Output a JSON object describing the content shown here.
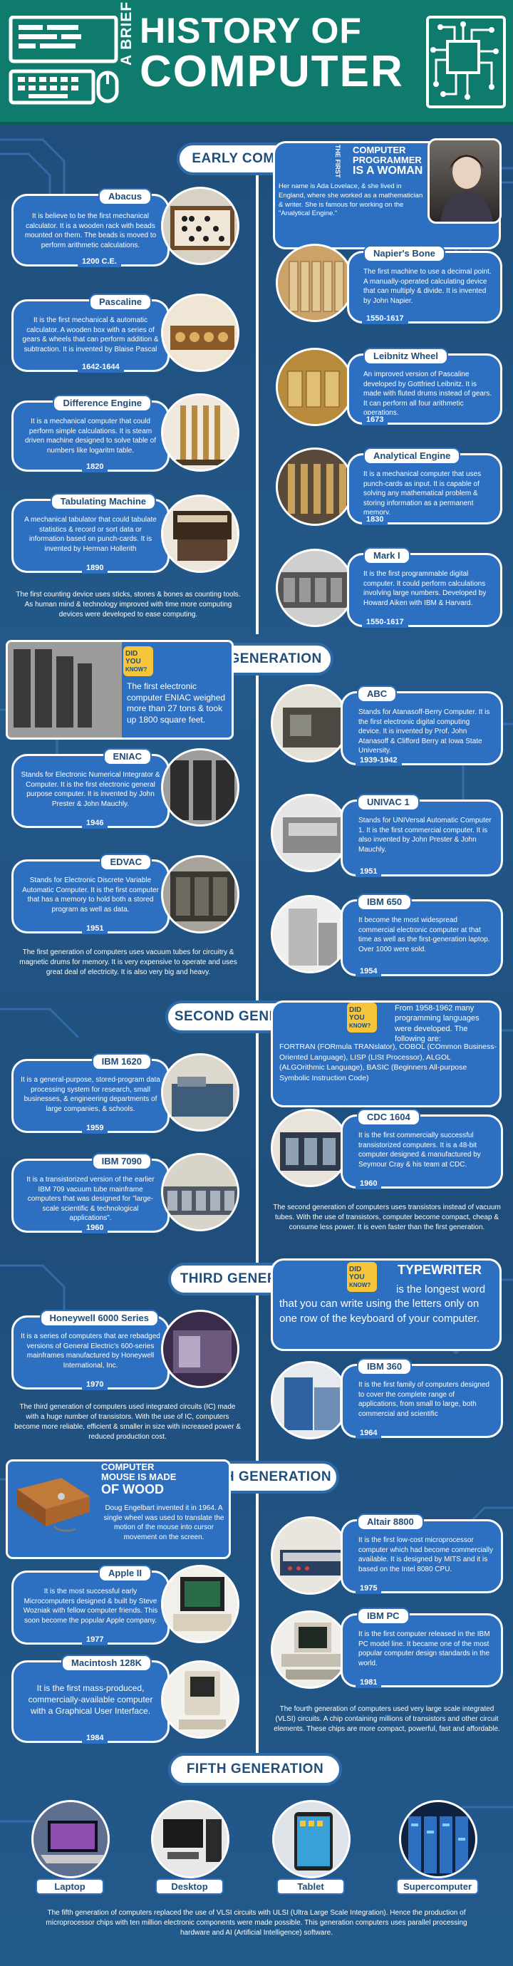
{
  "header": {
    "line1": "A BRIEF",
    "line2": "HISTORY OF",
    "line3": "COMPUTER"
  },
  "sections": {
    "early": "EARLY COMPUTER",
    "first": "FIRST GENERATION",
    "second": "SECOND GENERATION",
    "third": "THIRD GENERATION",
    "fourth": "FOURTH GENERATION",
    "fifth": "FIFTH GENERATION"
  },
  "programmer": {
    "tag": "THE FIRST",
    "title1": "COMPUTER",
    "title2": "PROGRAMMER",
    "title3": "IS A WOMAN",
    "text": "Her name is Ada Lovelace, & she lived in England, where she worked as a mathematician & writer. She is famous for working on the \"Analytical Engine.\""
  },
  "early": {
    "abacus": {
      "title": "Abacus",
      "text": "It is believe to be the first mechanical calculator. It is a wooden rack with beads mounted on them. The beads is moved to perform arithmetic calculations.",
      "year": "1200 C.E."
    },
    "napier": {
      "title": "Napier's Bone",
      "text": "The first machine to use a decimal point. A manually-operated calculating device that can multiply & divide. It is invented by John Napier.",
      "year": "1550-1617"
    },
    "pascaline": {
      "title": "Pascaline",
      "text": "It is the first mechanical & automatic calculator. A wooden box with a series of gears & wheels that can perform addition & subtraction. It is invented by Blaise Pascal",
      "year": "1642-1644"
    },
    "leibnitz": {
      "title": "Leibnitz Wheel",
      "text": "An improved version of Pascaline developed by Gottfried Leibnitz. It is made with fluted drums instead of gears. It can perform all four arithmetic operations.",
      "year": "1673"
    },
    "difference": {
      "title": "Difference Engine",
      "text": "It is a mechanical computer that could perform simple calculations. It is steam driven machine designed to solve table of numbers like logaritm table.",
      "year": "1820"
    },
    "analytical": {
      "title": "Analytical Engine",
      "text": "It is a mechanical computer that uses punch-cards as input. It is capable of solving any mathematical problem & storing information as a permanent memory.",
      "year": "1830"
    },
    "tabulating": {
      "title": "Tabulating Machine",
      "text": "A mechanical tabulator that could tabulate statistics & record or sort data or information based on punch-cards. It is invented by Herman Hollerith",
      "year": "1890"
    },
    "mark1": {
      "title": "Mark I",
      "text": "It is the first programmable digital computer. It could perform calculations involving large numbers. Developed by Howard Aiken with IBM & Harvard.",
      "year": "1550-1617"
    },
    "summary": "The first counting device uses sticks, stones & bones as counting tools. As human mind & technology improved with time more computing devices were developed to ease computing."
  },
  "first": {
    "dyk": "The first electronic computer ENIAC weighed more than 27 tons & took up 1800 square feet.",
    "abc": {
      "title": "ABC",
      "text": "Stands for Atanasoff-Berry Computer. It is the first electronic digital computing device. It is invented by Prof. John Atanasoff & Clifford Berry at Iowa State University.",
      "year": "1939-1942"
    },
    "eniac": {
      "title": "ENIAC",
      "text": "Stands for Electronic Numerical Integrator & Computer. It is the first electronic general purpose computer. It is invented by John Prester & John Mauchly.",
      "year": "1946"
    },
    "univac": {
      "title": "UNIVAC 1",
      "text": "Stands for UNIVersal Automatic Computer 1. It is the first commercial computer. It is also invented by John Prester & John Mauchly.",
      "year": "1951"
    },
    "edvac": {
      "title": "EDVAC",
      "text": "Stands for Electronic Discrete Variable Automatic Computer. It is the first computer that has a memory to hold both a stored program as well as data.",
      "year": "1951"
    },
    "ibm650": {
      "title": "IBM 650",
      "text": "It become the most widespread commercial electronic computer at that time as well as the first-generation laptop. Over 1000 were sold.",
      "year": "1954"
    },
    "summary": "The first generation of computers uses vacuum tubes for circuitry & magnetic drums for memory. It is very expensive to operate and uses great deal of electricity. It is also very big and heavy."
  },
  "second": {
    "dyk_lead": "From 1958-1962 many programming languages were developed. The following are:",
    "dyk_list": "FORTRAN (FORmula TRANslator), COBOL (COmmon Business-Oriented Language), LISP (LISt Processor), ALGOL (ALGOrithmic Language), BASIC (Beginners All-purpose Symbolic Instruction Code)",
    "ibm1620": {
      "title": "IBM 1620",
      "text": "It is a general-purpose, stored-program data processing system for research, small businesses, & engineering departments of large companies, & schools.",
      "year": "1959"
    },
    "cdc1604": {
      "title": "CDC 1604",
      "text": "It is the first commercially successful transistorized computers. It is a 48-bit computer designed & manufactured by Seymour Cray & his team at CDC.",
      "year": "1960"
    },
    "ibm7090": {
      "title": "IBM 7090",
      "text": "It is a transistorized version of the earlier IBM 709 vacuum tube mainframe computers that was designed for \"large-scale scientific & technological applications\".",
      "year": "1960"
    },
    "summary": "The second generation of computers uses transistors instead of vacuum tubes. With the use of transistors, computer become compact, cheap & consume less power. It is even faster than the first generation."
  },
  "third": {
    "dyk_title": "TYPEWRITER",
    "dyk_text": "is the longest word that you can write using the letters only on one row of the keyboard of your computer.",
    "honeywell": {
      "title": "Honeywell 6000 Series",
      "text": "It is a series of computers that are rebadged versions of General Electric's 600-series mainframes manufactured by Honeywell International, Inc.",
      "year": "1970"
    },
    "ibm360": {
      "title": "IBM 360",
      "text": "It is the first family of computers designed to cover the complete range of applications, from small to large, both commercial and scientific",
      "year": "1964"
    },
    "summary": "The third generation of computers used integrated circuits (IC) made with a huge number of transistors. With the use of IC, computers become more reliable, efficient & smaller in size with increased power & reduced production cost."
  },
  "fourth": {
    "mouse_title1": "COMPUTER",
    "mouse_title2": "MOUSE IS MADE",
    "mouse_title3": "OF WOOD",
    "mouse_text": "Doug Engelbart invented it in 1964. A single wheel was used to translate the motion of the mouse into cursor movement on the screen.",
    "altair": {
      "title": "Altair 8800",
      "text": "It is the first low-cost microprocessor computer which had become commercially available. It is designed by MITS and it is based on the Intel 8080 CPU.",
      "year": "1975"
    },
    "apple2": {
      "title": "Apple II",
      "text": "It is the most successful early Microcomputers designed & built by Steve Wozniak with fellow computer friends. This soon become the popular Apple company.",
      "year": "1977"
    },
    "ibmpc": {
      "title": "IBM PC",
      "text": "It is the first computer released in the IBM PC model line. It became one of the most popular computer design standards in the world.",
      "year": "1981"
    },
    "mac": {
      "title": "Macintosh 128K",
      "text": "It is the first mass-produced, commercially-available computer with a Graphical User Interface.",
      "year": "1984"
    },
    "summary": "The fourth generation of computers used very large scale integrated (VLSI) circuits. A chip containing millions of transistors and other circuit elements. These chips are more compact, powerful, fast and affordable."
  },
  "fifth": {
    "items": [
      "Laptop",
      "Desktop",
      "Tablet",
      "Supercomputer"
    ],
    "summary": "The fifth generation of computers replaced the use of VLSI circuits with ULSI (Ultra Large Scale Integration). Hence the production of microprocessor chips with ten million electronic components were made possible. This generation computers uses parallel processing hardware and AI (Artificial Intelligence) software."
  },
  "dyk_badge": {
    "line1": "DID",
    "line2": "YOU",
    "line3": "KNOW?"
  },
  "colors": {
    "header": "#0e7b6d",
    "background": "#1f4e7b",
    "card": "#2d6fc0",
    "accent": "#f6c53a"
  }
}
